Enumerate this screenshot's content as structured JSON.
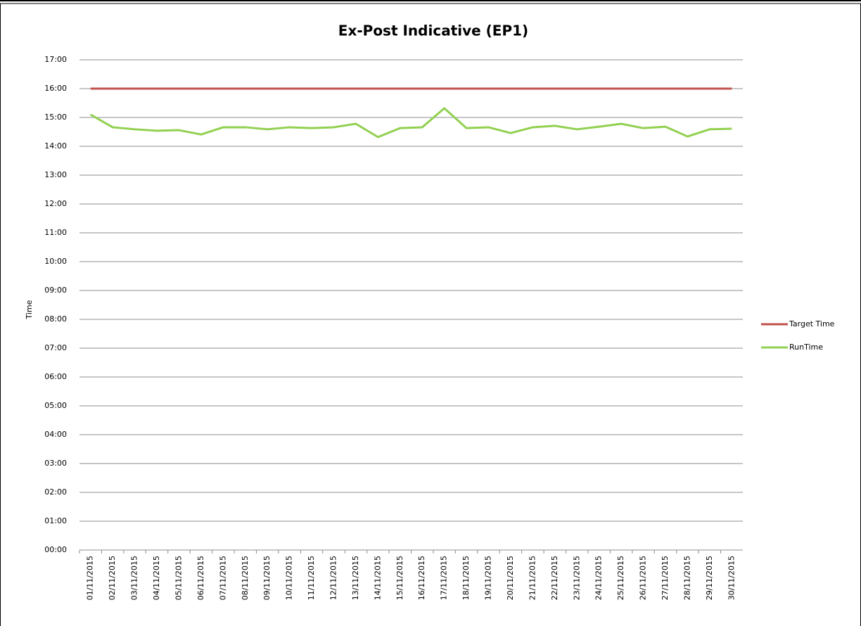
{
  "chart_data": {
    "type": "line",
    "title": "Ex-Post Indicative (EP1)",
    "y_label": "Time",
    "categories": [
      "01/11/2015",
      "02/11/2015",
      "03/11/2015",
      "04/11/2015",
      "05/11/2015",
      "06/11/2015",
      "07/11/2015",
      "08/11/2015",
      "09/11/2015",
      "10/11/2015",
      "11/11/2015",
      "12/11/2015",
      "13/11/2015",
      "14/11/2015",
      "15/11/2015",
      "16/11/2015",
      "17/11/2015",
      "18/11/2015",
      "19/11/2015",
      "20/11/2015",
      "21/11/2015",
      "22/11/2015",
      "23/11/2015",
      "24/11/2015",
      "25/11/2015",
      "26/11/2015",
      "27/11/2015",
      "28/11/2015",
      "29/11/2015",
      "30/11/2015"
    ],
    "series": [
      {
        "name": "Target Time",
        "color": "#c0504d",
        "values": [
          16,
          16,
          16,
          16,
          16,
          16,
          16,
          16,
          16,
          16,
          16,
          16,
          16,
          16,
          16,
          16,
          16,
          16,
          16,
          16,
          16,
          16,
          16,
          16,
          16,
          16,
          16,
          16,
          16,
          16
        ]
      },
      {
        "name": "RunTime",
        "color": "#92d050",
        "values": [
          15.1,
          14.66,
          14.59,
          14.54,
          14.56,
          14.41,
          14.66,
          14.66,
          14.59,
          14.66,
          14.63,
          14.66,
          14.78,
          14.32,
          14.63,
          14.66,
          15.32,
          14.63,
          14.66,
          14.46,
          14.66,
          14.71,
          14.59,
          14.68,
          14.78,
          14.63,
          14.68,
          14.34,
          14.59,
          14.61
        ]
      }
    ],
    "ylim": [
      0,
      17
    ],
    "yticks": [
      {
        "value": 0,
        "label": "00:00"
      },
      {
        "value": 1,
        "label": "01:00"
      },
      {
        "value": 2,
        "label": "02:00"
      },
      {
        "value": 3,
        "label": "03:00"
      },
      {
        "value": 4,
        "label": "04:00"
      },
      {
        "value": 5,
        "label": "05:00"
      },
      {
        "value": 6,
        "label": "06:00"
      },
      {
        "value": 7,
        "label": "07:00"
      },
      {
        "value": 8,
        "label": "08:00"
      },
      {
        "value": 9,
        "label": "09:00"
      },
      {
        "value": 10,
        "label": "10:00"
      },
      {
        "value": 11,
        "label": "11:00"
      },
      {
        "value": 12,
        "label": "12:00"
      },
      {
        "value": 13,
        "label": "13:00"
      },
      {
        "value": 14,
        "label": "14:00"
      },
      {
        "value": 15,
        "label": "15:00"
      },
      {
        "value": 16,
        "label": "16:00"
      },
      {
        "value": 17,
        "label": "17:00"
      }
    ],
    "grid": true,
    "legend": "right"
  }
}
